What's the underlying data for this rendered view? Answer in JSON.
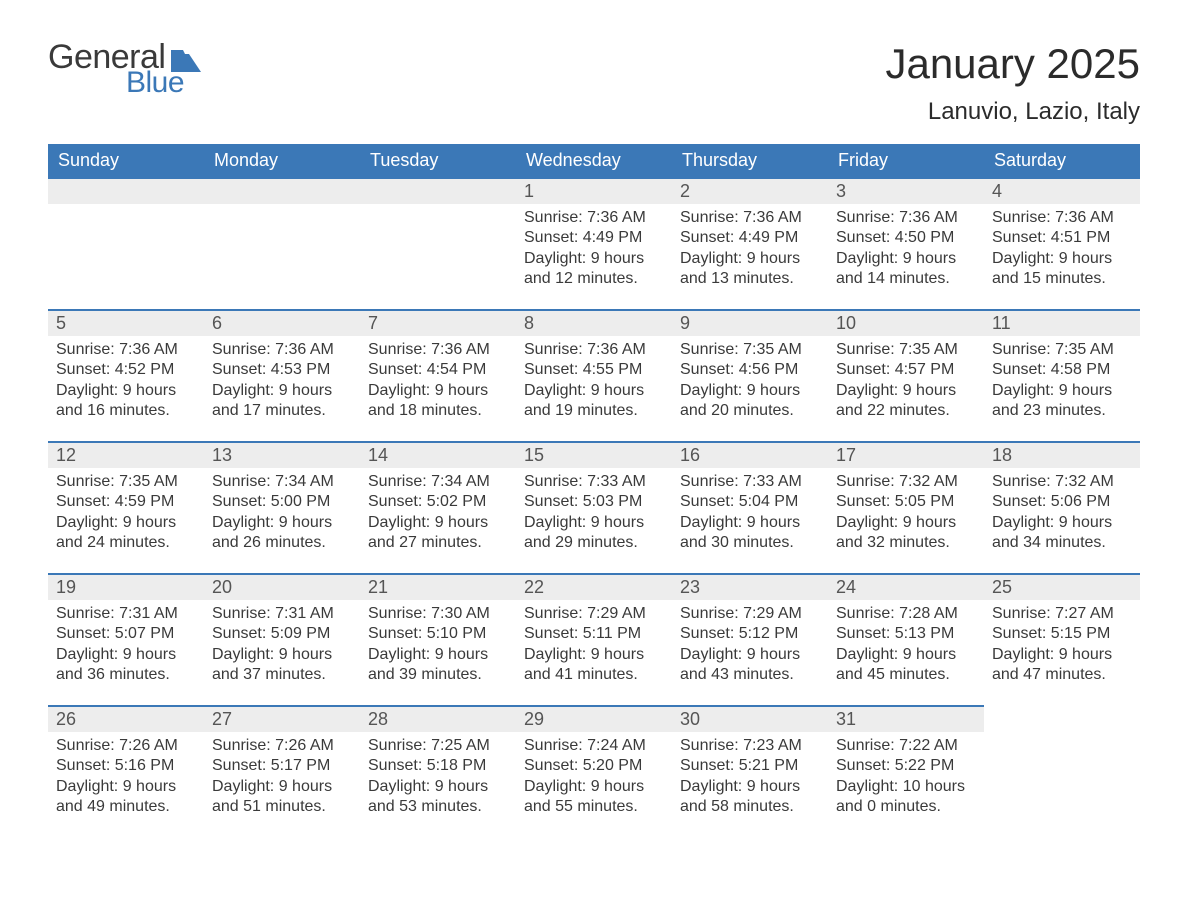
{
  "logo": {
    "word1": "General",
    "word2": "Blue",
    "word1_color": "#3a3a3a",
    "word2_color": "#3b78b7",
    "shape_color": "#3b78b7"
  },
  "title": "January 2025",
  "location": "Lanuvio, Lazio, Italy",
  "colors": {
    "header_bg": "#3b78b7",
    "header_text": "#ffffff",
    "daynum_bg": "#ededed",
    "daynum_text": "#555555",
    "body_text": "#3a3a3a",
    "row_border": "#3b78b7",
    "page_bg": "#ffffff"
  },
  "weekdays": [
    "Sunday",
    "Monday",
    "Tuesday",
    "Wednesday",
    "Thursday",
    "Friday",
    "Saturday"
  ],
  "weeks": [
    [
      null,
      null,
      null,
      {
        "n": "1",
        "sunrise": "Sunrise: 7:36 AM",
        "sunset": "Sunset: 4:49 PM",
        "dl1": "Daylight: 9 hours",
        "dl2": "and 12 minutes."
      },
      {
        "n": "2",
        "sunrise": "Sunrise: 7:36 AM",
        "sunset": "Sunset: 4:49 PM",
        "dl1": "Daylight: 9 hours",
        "dl2": "and 13 minutes."
      },
      {
        "n": "3",
        "sunrise": "Sunrise: 7:36 AM",
        "sunset": "Sunset: 4:50 PM",
        "dl1": "Daylight: 9 hours",
        "dl2": "and 14 minutes."
      },
      {
        "n": "4",
        "sunrise": "Sunrise: 7:36 AM",
        "sunset": "Sunset: 4:51 PM",
        "dl1": "Daylight: 9 hours",
        "dl2": "and 15 minutes."
      }
    ],
    [
      {
        "n": "5",
        "sunrise": "Sunrise: 7:36 AM",
        "sunset": "Sunset: 4:52 PM",
        "dl1": "Daylight: 9 hours",
        "dl2": "and 16 minutes."
      },
      {
        "n": "6",
        "sunrise": "Sunrise: 7:36 AM",
        "sunset": "Sunset: 4:53 PM",
        "dl1": "Daylight: 9 hours",
        "dl2": "and 17 minutes."
      },
      {
        "n": "7",
        "sunrise": "Sunrise: 7:36 AM",
        "sunset": "Sunset: 4:54 PM",
        "dl1": "Daylight: 9 hours",
        "dl2": "and 18 minutes."
      },
      {
        "n": "8",
        "sunrise": "Sunrise: 7:36 AM",
        "sunset": "Sunset: 4:55 PM",
        "dl1": "Daylight: 9 hours",
        "dl2": "and 19 minutes."
      },
      {
        "n": "9",
        "sunrise": "Sunrise: 7:35 AM",
        "sunset": "Sunset: 4:56 PM",
        "dl1": "Daylight: 9 hours",
        "dl2": "and 20 minutes."
      },
      {
        "n": "10",
        "sunrise": "Sunrise: 7:35 AM",
        "sunset": "Sunset: 4:57 PM",
        "dl1": "Daylight: 9 hours",
        "dl2": "and 22 minutes."
      },
      {
        "n": "11",
        "sunrise": "Sunrise: 7:35 AM",
        "sunset": "Sunset: 4:58 PM",
        "dl1": "Daylight: 9 hours",
        "dl2": "and 23 minutes."
      }
    ],
    [
      {
        "n": "12",
        "sunrise": "Sunrise: 7:35 AM",
        "sunset": "Sunset: 4:59 PM",
        "dl1": "Daylight: 9 hours",
        "dl2": "and 24 minutes."
      },
      {
        "n": "13",
        "sunrise": "Sunrise: 7:34 AM",
        "sunset": "Sunset: 5:00 PM",
        "dl1": "Daylight: 9 hours",
        "dl2": "and 26 minutes."
      },
      {
        "n": "14",
        "sunrise": "Sunrise: 7:34 AM",
        "sunset": "Sunset: 5:02 PM",
        "dl1": "Daylight: 9 hours",
        "dl2": "and 27 minutes."
      },
      {
        "n": "15",
        "sunrise": "Sunrise: 7:33 AM",
        "sunset": "Sunset: 5:03 PM",
        "dl1": "Daylight: 9 hours",
        "dl2": "and 29 minutes."
      },
      {
        "n": "16",
        "sunrise": "Sunrise: 7:33 AM",
        "sunset": "Sunset: 5:04 PM",
        "dl1": "Daylight: 9 hours",
        "dl2": "and 30 minutes."
      },
      {
        "n": "17",
        "sunrise": "Sunrise: 7:32 AM",
        "sunset": "Sunset: 5:05 PM",
        "dl1": "Daylight: 9 hours",
        "dl2": "and 32 minutes."
      },
      {
        "n": "18",
        "sunrise": "Sunrise: 7:32 AM",
        "sunset": "Sunset: 5:06 PM",
        "dl1": "Daylight: 9 hours",
        "dl2": "and 34 minutes."
      }
    ],
    [
      {
        "n": "19",
        "sunrise": "Sunrise: 7:31 AM",
        "sunset": "Sunset: 5:07 PM",
        "dl1": "Daylight: 9 hours",
        "dl2": "and 36 minutes."
      },
      {
        "n": "20",
        "sunrise": "Sunrise: 7:31 AM",
        "sunset": "Sunset: 5:09 PM",
        "dl1": "Daylight: 9 hours",
        "dl2": "and 37 minutes."
      },
      {
        "n": "21",
        "sunrise": "Sunrise: 7:30 AM",
        "sunset": "Sunset: 5:10 PM",
        "dl1": "Daylight: 9 hours",
        "dl2": "and 39 minutes."
      },
      {
        "n": "22",
        "sunrise": "Sunrise: 7:29 AM",
        "sunset": "Sunset: 5:11 PM",
        "dl1": "Daylight: 9 hours",
        "dl2": "and 41 minutes."
      },
      {
        "n": "23",
        "sunrise": "Sunrise: 7:29 AM",
        "sunset": "Sunset: 5:12 PM",
        "dl1": "Daylight: 9 hours",
        "dl2": "and 43 minutes."
      },
      {
        "n": "24",
        "sunrise": "Sunrise: 7:28 AM",
        "sunset": "Sunset: 5:13 PM",
        "dl1": "Daylight: 9 hours",
        "dl2": "and 45 minutes."
      },
      {
        "n": "25",
        "sunrise": "Sunrise: 7:27 AM",
        "sunset": "Sunset: 5:15 PM",
        "dl1": "Daylight: 9 hours",
        "dl2": "and 47 minutes."
      }
    ],
    [
      {
        "n": "26",
        "sunrise": "Sunrise: 7:26 AM",
        "sunset": "Sunset: 5:16 PM",
        "dl1": "Daylight: 9 hours",
        "dl2": "and 49 minutes."
      },
      {
        "n": "27",
        "sunrise": "Sunrise: 7:26 AM",
        "sunset": "Sunset: 5:17 PM",
        "dl1": "Daylight: 9 hours",
        "dl2": "and 51 minutes."
      },
      {
        "n": "28",
        "sunrise": "Sunrise: 7:25 AM",
        "sunset": "Sunset: 5:18 PM",
        "dl1": "Daylight: 9 hours",
        "dl2": "and 53 minutes."
      },
      {
        "n": "29",
        "sunrise": "Sunrise: 7:24 AM",
        "sunset": "Sunset: 5:20 PM",
        "dl1": "Daylight: 9 hours",
        "dl2": "and 55 minutes."
      },
      {
        "n": "30",
        "sunrise": "Sunrise: 7:23 AM",
        "sunset": "Sunset: 5:21 PM",
        "dl1": "Daylight: 9 hours",
        "dl2": "and 58 minutes."
      },
      {
        "n": "31",
        "sunrise": "Sunrise: 7:22 AM",
        "sunset": "Sunset: 5:22 PM",
        "dl1": "Daylight: 10 hours",
        "dl2": "and 0 minutes."
      },
      null
    ]
  ]
}
